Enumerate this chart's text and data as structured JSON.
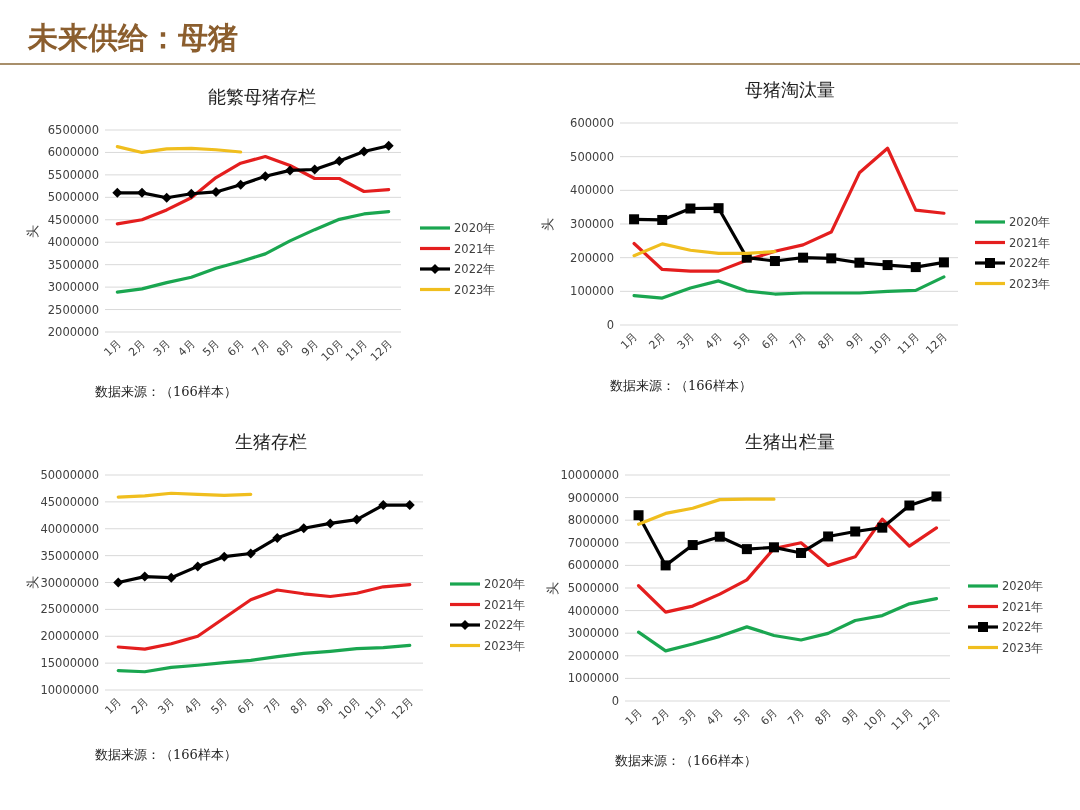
{
  "chart_data": [
    {
      "type": "line",
      "title": "能繁母猪存栏",
      "ylabel": "头",
      "categories": [
        "1月",
        "2月",
        "3月",
        "4月",
        "5月",
        "6月",
        "7月",
        "8月",
        "9月",
        "10月",
        "11月",
        "12月"
      ],
      "ylim": [
        2000000,
        6500000
      ],
      "yticks": [
        2000000,
        2500000,
        3000000,
        3500000,
        4000000,
        4500000,
        5000000,
        5500000,
        6000000,
        6500000
      ],
      "grid": "y",
      "legend": "right",
      "annotations": [
        "未来供给：母猪",
        "数据来源：（166样本）"
      ],
      "series": [
        {
          "name": "2020年",
          "color": "#1aa650",
          "values": [
            2890000,
            2960000,
            3100000,
            3220000,
            3420000,
            3570000,
            3740000,
            4030000,
            4280000,
            4510000,
            4630000,
            4680000
          ]
        },
        {
          "name": "2021年",
          "color": "#e41e1e",
          "values": [
            4410000,
            4500000,
            4720000,
            4990000,
            5440000,
            5760000,
            5910000,
            5710000,
            5420000,
            5420000,
            5130000,
            5170000
          ]
        },
        {
          "name": "2022年",
          "color": "#000000",
          "marker": "diamond",
          "values": [
            5100000,
            5100000,
            4990000,
            5080000,
            5120000,
            5280000,
            5470000,
            5600000,
            5620000,
            5810000,
            6020000,
            6150000
          ]
        },
        {
          "name": "2023年",
          "color": "#f0be1e",
          "values": [
            6130000,
            6000000,
            6080000,
            6090000,
            6060000,
            6010000,
            null,
            null,
            null,
            null,
            null,
            null
          ]
        }
      ]
    },
    {
      "type": "line",
      "title": "母猪淘汰量",
      "ylabel": "头",
      "categories": [
        "1月",
        "2月",
        "3月",
        "4月",
        "5月",
        "6月",
        "7月",
        "8月",
        "9月",
        "10月",
        "11月",
        "12月"
      ],
      "ylim": [
        0,
        600000
      ],
      "yticks": [
        0,
        100000,
        200000,
        300000,
        400000,
        500000,
        600000
      ],
      "grid": "y",
      "legend": "right",
      "annotations": [
        "数据来源：（166样本）"
      ],
      "series": [
        {
          "name": "2020年",
          "color": "#1aa650",
          "values": [
            87000,
            80000,
            110000,
            131000,
            101000,
            92000,
            95000,
            95000,
            95000,
            100000,
            103000,
            143000
          ]
        },
        {
          "name": "2021年",
          "color": "#e41e1e",
          "values": [
            242000,
            165000,
            160000,
            160000,
            192000,
            219000,
            238000,
            276000,
            452000,
            525000,
            341000,
            332000
          ]
        },
        {
          "name": "2022年",
          "color": "#000000",
          "marker": "square",
          "values": [
            314000,
            312000,
            346000,
            347000,
            200000,
            190000,
            200000,
            198000,
            185000,
            178000,
            172000,
            186000
          ]
        },
        {
          "name": "2023年",
          "color": "#f0be1e",
          "values": [
            206000,
            241000,
            222000,
            213000,
            213000,
            218000,
            null,
            null,
            null,
            null,
            null,
            null
          ]
        }
      ]
    },
    {
      "type": "line",
      "title": "生猪存栏",
      "ylabel": "头",
      "categories": [
        "1月",
        "2月",
        "3月",
        "4月",
        "5月",
        "6月",
        "7月",
        "8月",
        "9月",
        "10月",
        "11月",
        "12月"
      ],
      "ylim": [
        10000000,
        50000000
      ],
      "yticks": [
        10000000,
        15000000,
        20000000,
        25000000,
        30000000,
        35000000,
        40000000,
        45000000,
        50000000
      ],
      "grid": "y",
      "legend": "right",
      "annotations": [
        "数据来源：（166样本）"
      ],
      "series": [
        {
          "name": "2020年",
          "color": "#1aa650",
          "values": [
            13600000,
            13400000,
            14200000,
            14600000,
            15100000,
            15500000,
            16200000,
            16800000,
            17200000,
            17700000,
            17900000,
            18300000
          ]
        },
        {
          "name": "2021年",
          "color": "#e41e1e",
          "values": [
            18000000,
            17600000,
            18600000,
            20000000,
            23400000,
            26800000,
            28600000,
            27900000,
            27400000,
            28000000,
            29200000,
            29600000
          ]
        },
        {
          "name": "2022年",
          "color": "#000000",
          "marker": "diamond",
          "values": [
            30000000,
            31100000,
            30900000,
            33000000,
            34800000,
            35400000,
            38300000,
            40100000,
            41000000,
            41700000,
            44400000,
            44400000
          ]
        },
        {
          "name": "2023年",
          "color": "#f0be1e",
          "values": [
            45900000,
            46100000,
            46600000,
            46400000,
            46200000,
            46400000,
            null,
            null,
            null,
            null,
            null,
            null
          ]
        }
      ]
    },
    {
      "type": "line",
      "title": "生猪出栏量",
      "ylabel": "头",
      "categories": [
        "1月",
        "2月",
        "3月",
        "4月",
        "5月",
        "6月",
        "7月",
        "8月",
        "9月",
        "10月",
        "11月",
        "12月"
      ],
      "ylim": [
        0,
        10000000
      ],
      "yticks": [
        0,
        1000000,
        2000000,
        3000000,
        4000000,
        5000000,
        6000000,
        7000000,
        8000000,
        9000000,
        10000000
      ],
      "grid": "y",
      "legend": "right",
      "annotations": [
        "数据来源：（166样本）"
      ],
      "series": [
        {
          "name": "2020年",
          "color": "#1aa650",
          "values": [
            3050000,
            2220000,
            2520000,
            2860000,
            3280000,
            2900000,
            2700000,
            2990000,
            3560000,
            3780000,
            4300000,
            4530000
          ]
        },
        {
          "name": "2021年",
          "color": "#e41e1e",
          "values": [
            5100000,
            3930000,
            4200000,
            4730000,
            5360000,
            6750000,
            7000000,
            6000000,
            6380000,
            8050000,
            6850000,
            7660000
          ]
        },
        {
          "name": "2022年",
          "color": "#000000",
          "marker": "square",
          "values": [
            8220000,
            6000000,
            6900000,
            7270000,
            6720000,
            6800000,
            6550000,
            7280000,
            7500000,
            7670000,
            8650000,
            9050000
          ]
        },
        {
          "name": "2023年",
          "color": "#f0be1e",
          "values": [
            7820000,
            8300000,
            8530000,
            8910000,
            8930000,
            8930000,
            null,
            null,
            null,
            null,
            null,
            null
          ]
        }
      ]
    }
  ]
}
